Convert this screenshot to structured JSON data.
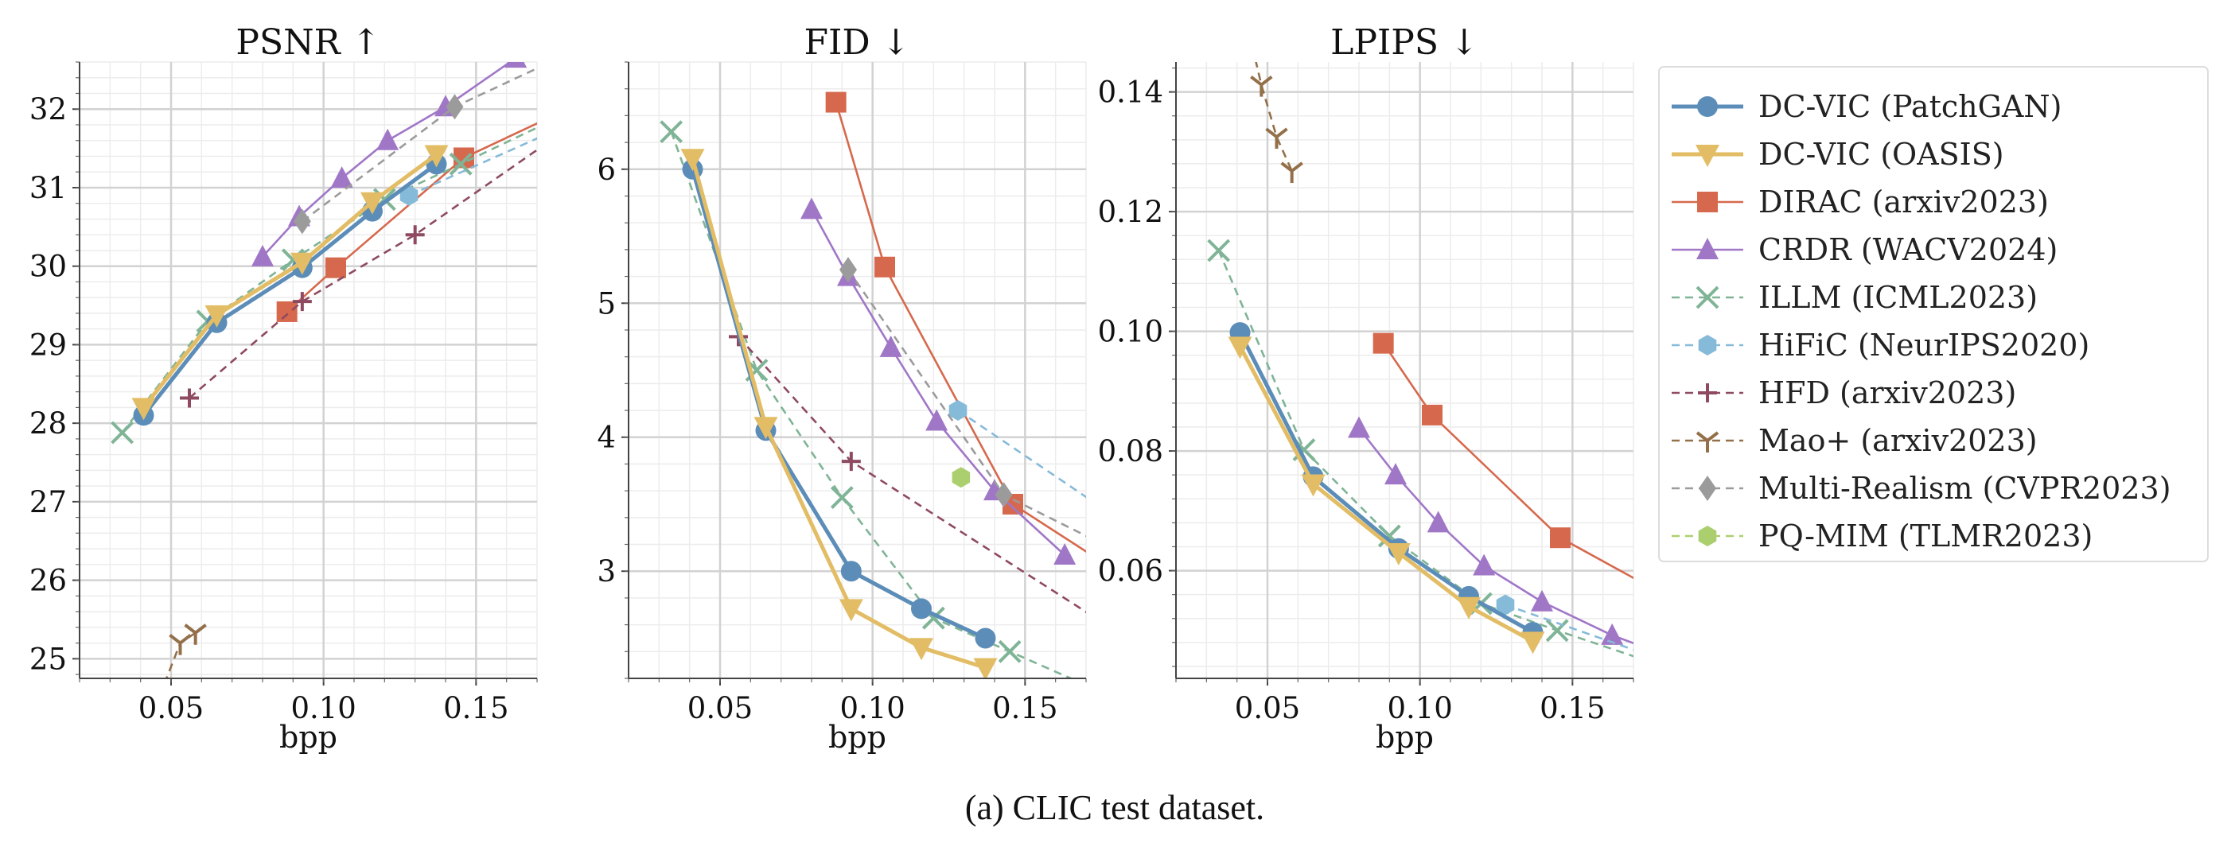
{
  "caption": "(a) CLIC test dataset.",
  "chart_data": [
    {
      "type": "line",
      "title": "PSNR  ↑",
      "xlabel": "bpp",
      "ylabel": "",
      "xlim": [
        0.02,
        0.17
      ],
      "ylim": [
        24.75,
        32.6
      ],
      "xticks": [
        0.05,
        0.1,
        0.15
      ],
      "xtick_labels": [
        "0.05",
        "0.10",
        "0.15"
      ],
      "yticks": [
        25,
        26,
        27,
        28,
        29,
        30,
        31,
        32
      ],
      "ytick_labels": [
        "25",
        "26",
        "27",
        "28",
        "29",
        "30",
        "31",
        "32"
      ],
      "grid": true,
      "series": [
        {
          "name": "DC-VIC (PatchGAN)",
          "x": [
            0.041,
            0.065,
            0.093,
            0.116,
            0.137
          ],
          "y": [
            28.1,
            29.28,
            29.98,
            30.7,
            31.3
          ]
        },
        {
          "name": "DC-VIC (OASIS)",
          "x": [
            0.041,
            0.065,
            0.093,
            0.116,
            0.137
          ],
          "y": [
            28.2,
            29.38,
            30.05,
            30.82,
            31.42
          ]
        },
        {
          "name": "DIRAC (arxiv2023)",
          "x": [
            0.088,
            0.104,
            0.146,
            0.18
          ],
          "y": [
            29.42,
            29.98,
            31.38,
            32.0
          ]
        },
        {
          "name": "CRDR (WACV2024)",
          "x": [
            0.08,
            0.092,
            0.106,
            0.121,
            0.14,
            0.163,
            0.175
          ],
          "y": [
            30.12,
            30.63,
            31.12,
            31.6,
            32.03,
            32.65,
            33.0
          ]
        },
        {
          "name": "ILLM (ICML2023)",
          "x": [
            0.034,
            0.062,
            0.09,
            0.12,
            0.145,
            0.18
          ],
          "y": [
            27.88,
            29.3,
            30.08,
            30.85,
            31.3,
            31.95
          ]
        },
        {
          "name": "HiFiC (NeurIPS2020)",
          "x": [
            0.128,
            0.18
          ],
          "y": [
            30.9,
            31.8
          ]
        },
        {
          "name": "HFD (arxiv2023)",
          "x": [
            0.056,
            0.093,
            0.13,
            0.18
          ],
          "y": [
            28.32,
            29.55,
            30.4,
            31.75
          ]
        },
        {
          "name": "Mao+ (arxiv2023)",
          "x": [
            0.043,
            0.053,
            0.058
          ],
          "y": [
            24.2,
            25.2,
            25.33
          ]
        },
        {
          "name": "Multi-Realism (CVPR2023)",
          "x": [
            0.093,
            0.143,
            0.18
          ],
          "y": [
            30.57,
            32.03,
            32.7
          ]
        }
      ]
    },
    {
      "type": "line",
      "title": "FID  ↓",
      "xlabel": "bpp",
      "ylabel": "",
      "xlim": [
        0.02,
        0.17
      ],
      "ylim": [
        2.2,
        6.8
      ],
      "xticks": [
        0.05,
        0.1,
        0.15
      ],
      "xtick_labels": [
        "0.05",
        "0.10",
        "0.15"
      ],
      "yticks": [
        3,
        4,
        5,
        6
      ],
      "ytick_labels": [
        "3",
        "4",
        "5",
        "6"
      ],
      "grid": true,
      "series": [
        {
          "name": "DC-VIC (PatchGAN)",
          "x": [
            0.041,
            0.065,
            0.093,
            0.116,
            0.137
          ],
          "y": [
            6.0,
            4.05,
            3.0,
            2.72,
            2.5
          ]
        },
        {
          "name": "DC-VIC (OASIS)",
          "x": [
            0.041,
            0.065,
            0.093,
            0.116,
            0.137
          ],
          "y": [
            6.08,
            4.08,
            2.72,
            2.43,
            2.28
          ]
        },
        {
          "name": "DIRAC (arxiv2023)",
          "x": [
            0.088,
            0.104,
            0.146,
            0.18
          ],
          "y": [
            6.5,
            5.27,
            3.5,
            3.0
          ]
        },
        {
          "name": "CRDR (WACV2024)",
          "x": [
            0.08,
            0.092,
            0.106,
            0.121,
            0.14,
            0.163
          ],
          "y": [
            5.7,
            5.2,
            4.67,
            4.12,
            3.6,
            3.12
          ]
        },
        {
          "name": "ILLM (ICML2023)",
          "x": [
            0.034,
            0.062,
            0.09,
            0.12,
            0.145,
            0.18
          ],
          "y": [
            6.28,
            4.5,
            3.55,
            2.65,
            2.4,
            2.05
          ]
        },
        {
          "name": "HiFiC (NeurIPS2020)",
          "x": [
            0.128,
            0.18
          ],
          "y": [
            4.2,
            3.4
          ]
        },
        {
          "name": "HFD (arxiv2023)",
          "x": [
            0.056,
            0.093,
            0.18
          ],
          "y": [
            4.75,
            3.82,
            2.55
          ]
        },
        {
          "name": "Mao+ (arxiv2023)",
          "x": [],
          "y": []
        },
        {
          "name": "Multi-Realism (CVPR2023)",
          "x": [
            0.092,
            0.143,
            0.18
          ],
          "y": [
            5.25,
            3.57,
            3.15
          ]
        },
        {
          "name": "PQ-MIM (TLMR2023)",
          "x": [
            0.129
          ],
          "y": [
            3.7
          ]
        }
      ]
    },
    {
      "type": "line",
      "title": "LPIPS  ↓",
      "xlabel": "bpp",
      "ylabel": "",
      "xlim": [
        0.02,
        0.17
      ],
      "ylim": [
        0.042,
        0.145
      ],
      "xticks": [
        0.05,
        0.1,
        0.15
      ],
      "xtick_labels": [
        "0.05",
        "0.10",
        "0.15"
      ],
      "yticks": [
        0.06,
        0.08,
        0.1,
        0.12,
        0.14
      ],
      "ytick_labels": [
        "0.06",
        "0.08",
        "0.10",
        "0.12",
        "0.14"
      ],
      "grid": true,
      "series": [
        {
          "name": "DC-VIC (PatchGAN)",
          "x": [
            0.041,
            0.065,
            0.093,
            0.116,
            0.137
          ],
          "y": [
            0.0998,
            0.0757,
            0.0637,
            0.0557,
            0.0497
          ]
        },
        {
          "name": "DC-VIC (OASIS)",
          "x": [
            0.041,
            0.065,
            0.093,
            0.116,
            0.137
          ],
          "y": [
            0.0975,
            0.0745,
            0.063,
            0.054,
            0.0482
          ]
        },
        {
          "name": "DIRAC (arxiv2023)",
          "x": [
            0.088,
            0.104,
            0.146,
            0.18
          ],
          "y": [
            0.098,
            0.086,
            0.0655,
            0.056
          ]
        },
        {
          "name": "CRDR (WACV2024)",
          "x": [
            0.08,
            0.092,
            0.106,
            0.121,
            0.14,
            0.163,
            0.18
          ],
          "y": [
            0.0838,
            0.076,
            0.068,
            0.0608,
            0.0548,
            0.0492,
            0.046
          ]
        },
        {
          "name": "ILLM (ICML2023)",
          "x": [
            0.034,
            0.062,
            0.09,
            0.12,
            0.145,
            0.18
          ],
          "y": [
            0.1135,
            0.0802,
            0.0658,
            0.0545,
            0.05,
            0.044
          ]
        },
        {
          "name": "HiFiC (NeurIPS2020)",
          "x": [
            0.128,
            0.18
          ],
          "y": [
            0.0543,
            0.045
          ]
        },
        {
          "name": "HFD (arxiv2023)",
          "x": [],
          "y": []
        },
        {
          "name": "Mao+ (arxiv2023)",
          "x": [
            0.043,
            0.048,
            0.053,
            0.058
          ],
          "y": [
            0.152,
            0.1412,
            0.1325,
            0.1268
          ]
        }
      ]
    }
  ],
  "legend": {
    "placement": "right",
    "entries": [
      {
        "label": "DC-VIC (PatchGAN)",
        "color": "#5b8db8",
        "marker": "circle",
        "dashed": false,
        "lw": 5
      },
      {
        "label": "DC-VIC (OASIS)",
        "color": "#e2bd65",
        "marker": "triangle-down",
        "dashed": false,
        "lw": 5
      },
      {
        "label": "DIRAC (arxiv2023)",
        "color": "#d6694d",
        "marker": "square",
        "dashed": false,
        "lw": 2.6
      },
      {
        "label": "CRDR (WACV2024)",
        "color": "#a077c7",
        "marker": "triangle-up",
        "dashed": false,
        "lw": 2.6
      },
      {
        "label": "ILLM (ICML2023)",
        "color": "#7fb496",
        "marker": "x",
        "dashed": true,
        "lw": 2.6
      },
      {
        "label": "HiFiC (NeurIPS2020)",
        "color": "#86bad9",
        "marker": "hexagon",
        "dashed": true,
        "lw": 2.6
      },
      {
        "label": "HFD (arxiv2023)",
        "color": "#8e4a60",
        "marker": "plus",
        "dashed": true,
        "lw": 2.6
      },
      {
        "label": "Mao+ (arxiv2023)",
        "color": "#93704a",
        "marker": "tri",
        "dashed": true,
        "lw": 2.6
      },
      {
        "label": "Multi-Realism (CVPR2023)",
        "color": "#9b9b9b",
        "marker": "diamond",
        "dashed": true,
        "lw": 2.6
      },
      {
        "label": "PQ-MIM (TLMR2023)",
        "color": "#abcf6e",
        "marker": "hexagon",
        "dashed": true,
        "lw": 2.6
      }
    ]
  }
}
